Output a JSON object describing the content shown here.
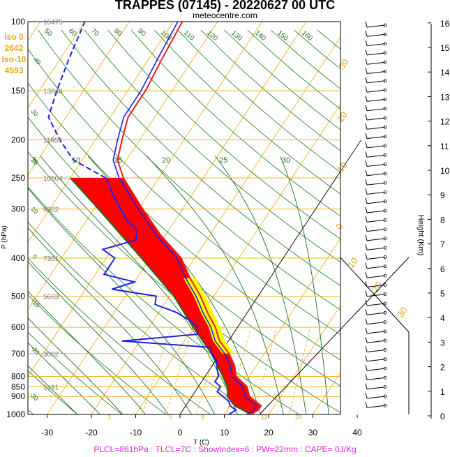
{
  "header": {
    "title": "TRAPPES (07145) - 20220627 00 UTC",
    "source": "meteocentre.com"
  },
  "iso_panel": {
    "iso0_label": "Iso 0",
    "iso0_value": "2642",
    "iso10_label": "Iso-10",
    "iso10_value": "4593"
  },
  "footer": {
    "text": "PLCL=861hPa : TLCL=7C : ShowIndex=6 : PW=22mm : CAPE= 0J/Kg"
  },
  "colors": {
    "isobar": "#f0b428",
    "isotherm": "#f0b428",
    "dry_adiabat": "#2a8a2a",
    "moist_adiabat": "#1f6b1f",
    "temperature": "#e61e1e",
    "dewpoint": "#1f1fe6",
    "cape_fill": "#ff0000",
    "cin_fill": "#ffff00",
    "footer": "#e61ee6"
  },
  "chart_data": {
    "type": "skew-t",
    "xlabel": "T (C)",
    "ylabel": "P (hPa)",
    "y2label": "Height (Km)",
    "x_ticks": [
      -30,
      -20,
      -10,
      0,
      10,
      20,
      30,
      40
    ],
    "pressure_levels": [
      100,
      150,
      200,
      250,
      300,
      400,
      500,
      600,
      700,
      800,
      850,
      900,
      1000
    ],
    "geopotential_heights": [
      {
        "p": 100,
        "z": "16475"
      },
      {
        "p": 150,
        "z": "13846"
      },
      {
        "p": 200,
        "z": "11953"
      },
      {
        "p": 250,
        "z": "10504"
      },
      {
        "p": 300,
        "z": "9302"
      },
      {
        "p": 400,
        "z": "7301"
      },
      {
        "p": 500,
        "z": "5663"
      },
      {
        "p": 700,
        "z": "3062"
      },
      {
        "p": 850,
        "z": "1491"
      }
    ],
    "height_ticks_km": [
      0,
      1,
      2,
      3,
      4,
      5,
      6,
      7,
      8,
      9,
      10,
      11,
      12,
      13,
      14,
      15,
      16
    ],
    "isotherm_labels": [
      "-50",
      "-40",
      "-30",
      "-20",
      "-10",
      "0",
      "10",
      "20",
      "30"
    ],
    "dry_adiabat_labels": [
      "50",
      "60",
      "70",
      "80",
      "90",
      "100",
      "110",
      "120",
      "130",
      "140",
      "150",
      "160"
    ],
    "moist_adiabat_labels": [
      "5",
      "10",
      "15",
      "20",
      "25",
      "30"
    ],
    "mixing_ratio_labels": [
      "3",
      "5",
      "8",
      "12",
      "20"
    ],
    "temperature": [
      {
        "p": 1000,
        "t": 16
      },
      {
        "p": 975,
        "t": 17
      },
      {
        "p": 950,
        "t": 17
      },
      {
        "p": 925,
        "t": 15
      },
      {
        "p": 900,
        "t": 13
      },
      {
        "p": 875,
        "t": 12
      },
      {
        "p": 850,
        "t": 11
      },
      {
        "p": 800,
        "t": 7
      },
      {
        "p": 750,
        "t": 5
      },
      {
        "p": 700,
        "t": 2
      },
      {
        "p": 650,
        "t": -2
      },
      {
        "p": 600,
        "t": -5
      },
      {
        "p": 550,
        "t": -9
      },
      {
        "p": 500,
        "t": -13
      },
      {
        "p": 450,
        "t": -18
      },
      {
        "p": 400,
        "t": -23
      },
      {
        "p": 350,
        "t": -31
      },
      {
        "p": 300,
        "t": -39
      },
      {
        "p": 250,
        "t": -48
      },
      {
        "p": 225,
        "t": -52
      },
      {
        "p": 200,
        "t": -54
      },
      {
        "p": 175,
        "t": -56
      },
      {
        "p": 150,
        "t": -56
      },
      {
        "p": 125,
        "t": -57
      },
      {
        "p": 100,
        "t": -58
      }
    ],
    "dewpoint": [
      {
        "p": 1000,
        "t": 11
      },
      {
        "p": 975,
        "t": 12
      },
      {
        "p": 950,
        "t": 10
      },
      {
        "p": 925,
        "t": 9
      },
      {
        "p": 900,
        "t": 7
      },
      {
        "p": 875,
        "t": 5
      },
      {
        "p": 850,
        "t": 5
      },
      {
        "p": 825,
        "t": 3
      },
      {
        "p": 800,
        "t": 3
      },
      {
        "p": 775,
        "t": 2
      },
      {
        "p": 750,
        "t": 1
      },
      {
        "p": 725,
        "t": 0
      },
      {
        "p": 700,
        "t": -2
      },
      {
        "p": 675,
        "t": -3
      },
      {
        "p": 650,
        "t": -24
      },
      {
        "p": 625,
        "t": -8
      },
      {
        "p": 600,
        "t": -9
      },
      {
        "p": 575,
        "t": -12
      },
      {
        "p": 550,
        "t": -16
      },
      {
        "p": 525,
        "t": -22
      },
      {
        "p": 500,
        "t": -23
      },
      {
        "p": 480,
        "t": -34
      },
      {
        "p": 460,
        "t": -30
      },
      {
        "p": 440,
        "t": -38
      },
      {
        "p": 420,
        "t": -38
      },
      {
        "p": 400,
        "t": -38
      },
      {
        "p": 380,
        "t": -42
      },
      {
        "p": 360,
        "t": -36
      },
      {
        "p": 340,
        "t": -37
      },
      {
        "p": 320,
        "t": -41
      },
      {
        "p": 300,
        "t": -44
      },
      {
        "p": 275,
        "t": -48
      },
      {
        "p": 250,
        "t": -52
      },
      {
        "p": 225,
        "t": -62
      },
      {
        "p": 200,
        "t": -68
      },
      {
        "p": 175,
        "t": -74
      },
      {
        "p": 150,
        "t": -76
      },
      {
        "p": 125,
        "t": -78
      },
      {
        "p": 100,
        "t": -80
      }
    ],
    "parcel": [
      {
        "p": 1000,
        "t": 16
      },
      {
        "p": 950,
        "t": 11
      },
      {
        "p": 900,
        "t": 8
      },
      {
        "p": 861,
        "t": 7
      },
      {
        "p": 800,
        "t": 4
      },
      {
        "p": 700,
        "t": -2
      },
      {
        "p": 600,
        "t": -10
      },
      {
        "p": 500,
        "t": -19
      },
      {
        "p": 400,
        "t": -32
      },
      {
        "p": 300,
        "t": -49
      },
      {
        "p": 250,
        "t": -60
      }
    ],
    "grid": true,
    "legend": "none"
  }
}
